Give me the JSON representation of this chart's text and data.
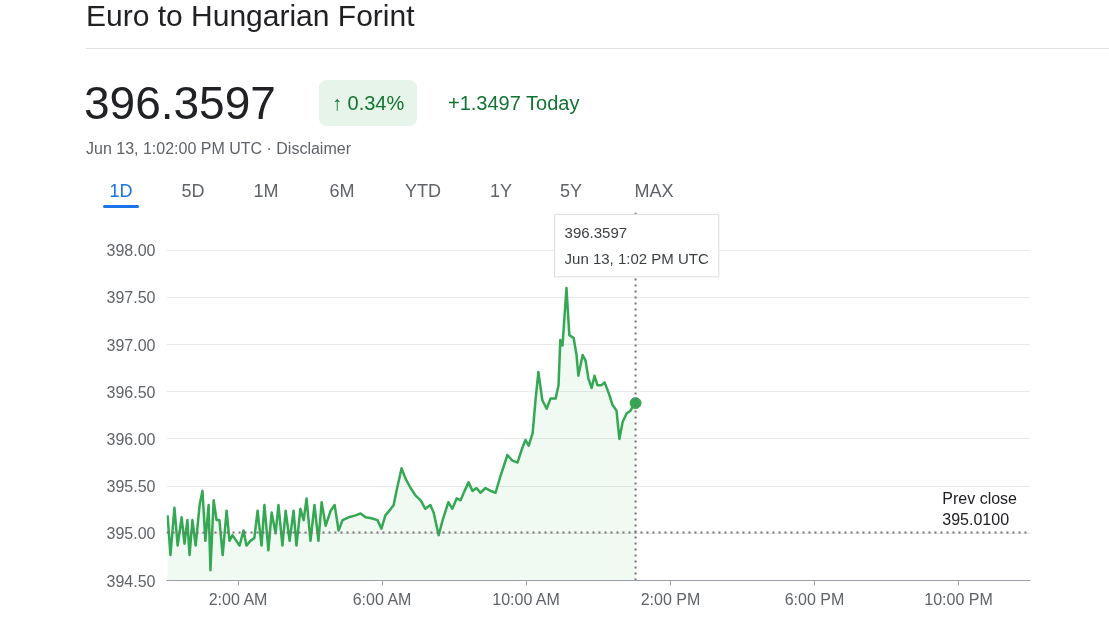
{
  "chart_data": {
    "type": "area",
    "title": "Euro to Hungarian Forint",
    "subtitle": "Jun 13, 1:02:00 PM UTC · Disclaimer",
    "annotations": [
      "396.3597",
      "↑ 0.34%",
      "+1.3497 Today",
      "1D",
      "5D",
      "1M",
      "6M",
      "YTD",
      "1Y",
      "5Y",
      "MAX",
      "396.3597\nJun 13, 1:02 PM UTC"
    ],
    "x": [
      0.03,
      0.11,
      0.22,
      0.31,
      0.42,
      0.5,
      0.58,
      0.64,
      0.72,
      0.81,
      0.92,
      1.0,
      1.08,
      1.17,
      1.22,
      1.31,
      1.39,
      1.47,
      1.56,
      1.67,
      1.75,
      1.83,
      1.94,
      2.03,
      2.14,
      2.22,
      2.33,
      2.44,
      2.53,
      2.64,
      2.72,
      2.83,
      2.92,
      3.03,
      3.11,
      3.22,
      3.31,
      3.42,
      3.53,
      3.61,
      3.72,
      3.81,
      3.89,
      4.0,
      4.11,
      4.22,
      4.31,
      4.42,
      4.56,
      4.67,
      4.78,
      4.89,
      5.06,
      5.25,
      5.39,
      5.53,
      5.69,
      5.86,
      5.97,
      6.08,
      6.19,
      6.31,
      6.39,
      6.53,
      6.64,
      6.78,
      6.92,
      7.06,
      7.19,
      7.33,
      7.42,
      7.56,
      7.67,
      7.83,
      7.94,
      8.06,
      8.17,
      8.28,
      8.39,
      8.5,
      8.61,
      8.72,
      8.86,
      9.0,
      9.14,
      9.28,
      9.47,
      9.61,
      9.75,
      9.86,
      9.97,
      10.06,
      10.17,
      10.25,
      10.33,
      10.44,
      10.56,
      10.67,
      10.81,
      10.89,
      10.94,
      11.0,
      11.11,
      11.19,
      11.31,
      11.39,
      11.44,
      11.56,
      11.64,
      11.72,
      11.81,
      11.89,
      11.97,
      12.08,
      12.17,
      12.28,
      12.39,
      12.5,
      12.58,
      12.67,
      12.78,
      12.89,
      12.97,
      13.03
    ],
    "series": [
      {
        "color": "#34a853",
        "values": [
          395.19,
          394.77,
          395.27,
          394.87,
          395.17,
          394.89,
          395.14,
          394.77,
          395.14,
          394.87,
          395.3,
          395.45,
          394.92,
          395.3,
          394.61,
          395.35,
          395.14,
          395.14,
          394.77,
          395.24,
          394.92,
          394.98,
          394.92,
          394.87,
          395.03,
          394.87,
          394.92,
          394.95,
          395.24,
          394.87,
          395.3,
          394.82,
          395.22,
          395.0,
          395.3,
          394.87,
          395.24,
          394.92,
          395.24,
          394.87,
          395.26,
          395.14,
          395.37,
          394.92,
          395.3,
          394.92,
          395.33,
          395.08,
          395.24,
          395.3,
          395.03,
          395.14,
          395.17,
          395.19,
          395.21,
          395.17,
          395.16,
          395.14,
          395.05,
          395.19,
          395.24,
          395.3,
          395.45,
          395.69,
          395.58,
          395.48,
          395.4,
          395.35,
          395.26,
          395.3,
          395.22,
          394.98,
          395.14,
          395.33,
          395.26,
          395.37,
          395.35,
          395.45,
          395.54,
          395.45,
          395.48,
          395.43,
          395.48,
          395.45,
          395.43,
          395.61,
          395.83,
          395.77,
          395.75,
          395.88,
          395.99,
          395.93,
          396.06,
          396.41,
          396.71,
          396.41,
          396.32,
          396.43,
          396.43,
          396.57,
          397.05,
          396.99,
          397.6,
          397.1,
          397.07,
          396.89,
          396.67,
          396.89,
          396.83,
          396.64,
          396.54,
          396.67,
          396.57,
          396.57,
          396.6,
          396.49,
          396.36,
          396.3,
          396.0,
          396.18,
          396.27,
          396.3,
          396.36,
          396.38
        ]
      }
    ],
    "xlim": [
      0,
      24
    ],
    "ylim": [
      394.5,
      398.4
    ],
    "xticks": [
      {
        "value": 2,
        "label": "2:00 AM"
      },
      {
        "value": 6,
        "label": "6:00 AM"
      },
      {
        "value": 10,
        "label": "10:00 AM"
      },
      {
        "value": 14,
        "label": "2:00 PM"
      },
      {
        "value": 18,
        "label": "6:00 PM"
      },
      {
        "value": 22,
        "label": "10:00 PM"
      }
    ],
    "yticks": [
      {
        "value": 394.5,
        "label": "394.50"
      },
      {
        "value": 395,
        "label": "395.00"
      },
      {
        "value": 395.5,
        "label": "395.50"
      },
      {
        "value": 396,
        "label": "396.00"
      },
      {
        "value": 396.5,
        "label": "396.50"
      },
      {
        "value": 397,
        "label": "397.00"
      },
      {
        "value": 397.5,
        "label": "397.50"
      },
      {
        "value": 398,
        "label": "398.00"
      }
    ],
    "ref_lines": [
      {
        "axis": "x",
        "value": 13.03,
        "line_style": "dotted",
        "color": "#757575"
      },
      {
        "axis": "y",
        "value": 395.01,
        "label": "Prev close\n395.0100",
        "line_style": "dotted",
        "color": "#757575"
      }
    ],
    "grid": "y"
  }
}
